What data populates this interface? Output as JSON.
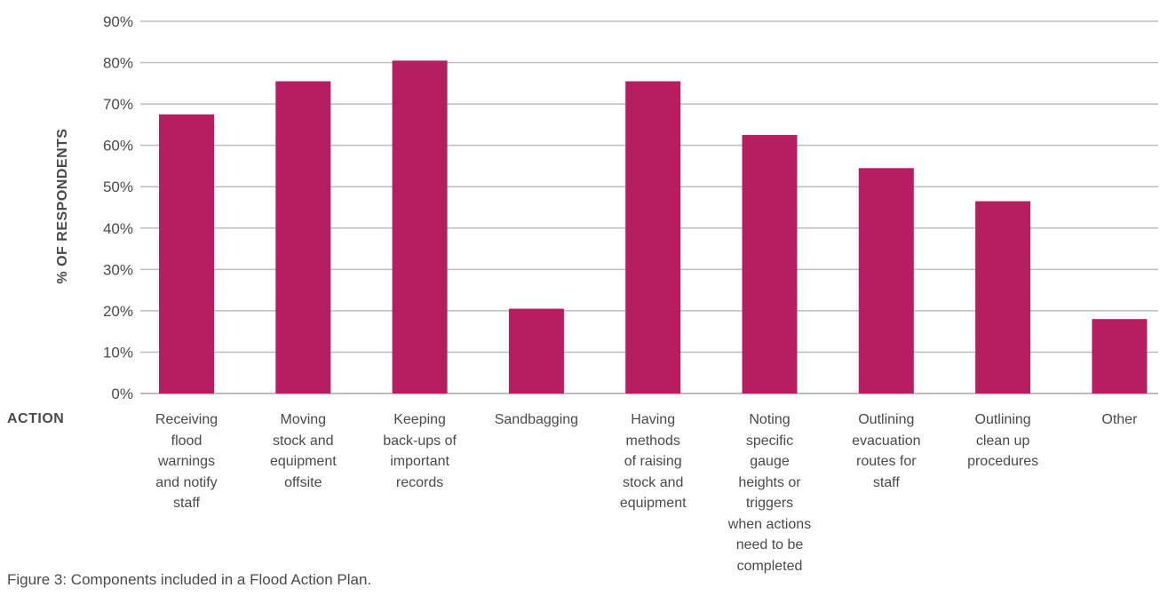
{
  "chart_data": {
    "type": "bar",
    "title": "",
    "caption": "Figure 3: Components included in a Flood Action Plan.",
    "xlabel": "ACTION",
    "ylabel": "% OF RESPONDENTS",
    "ylim": [
      0,
      90
    ],
    "yticks": [
      "0%",
      "10%",
      "20%",
      "30%",
      "40%",
      "50%",
      "60%",
      "70%",
      "80%",
      "90%"
    ],
    "grid": true,
    "legend": "none",
    "bar_color": "#b51f5f",
    "grid_color": "#bdbdbd",
    "categories": [
      "Receiving\nflood\nwarnings\nand notify\nstaff",
      "Moving\nstock and\nequipment\noffsite",
      "Keeping\nback-ups of\nimportant\nrecords",
      "Sandbagging",
      "Having\nmethods\nof raising\nstock and\nequipment",
      "Noting\nspecific\ngauge\nheights or\ntriggers\nwhen actions\nneed to be\ncompleted",
      "Outlining\nevacuation\nroutes for\nstaff",
      "Outlining\nclean up\nprocedures",
      "Other"
    ],
    "values": [
      67.5,
      75.5,
      80.5,
      20.5,
      75.5,
      62.5,
      54.5,
      46.5,
      18
    ]
  }
}
